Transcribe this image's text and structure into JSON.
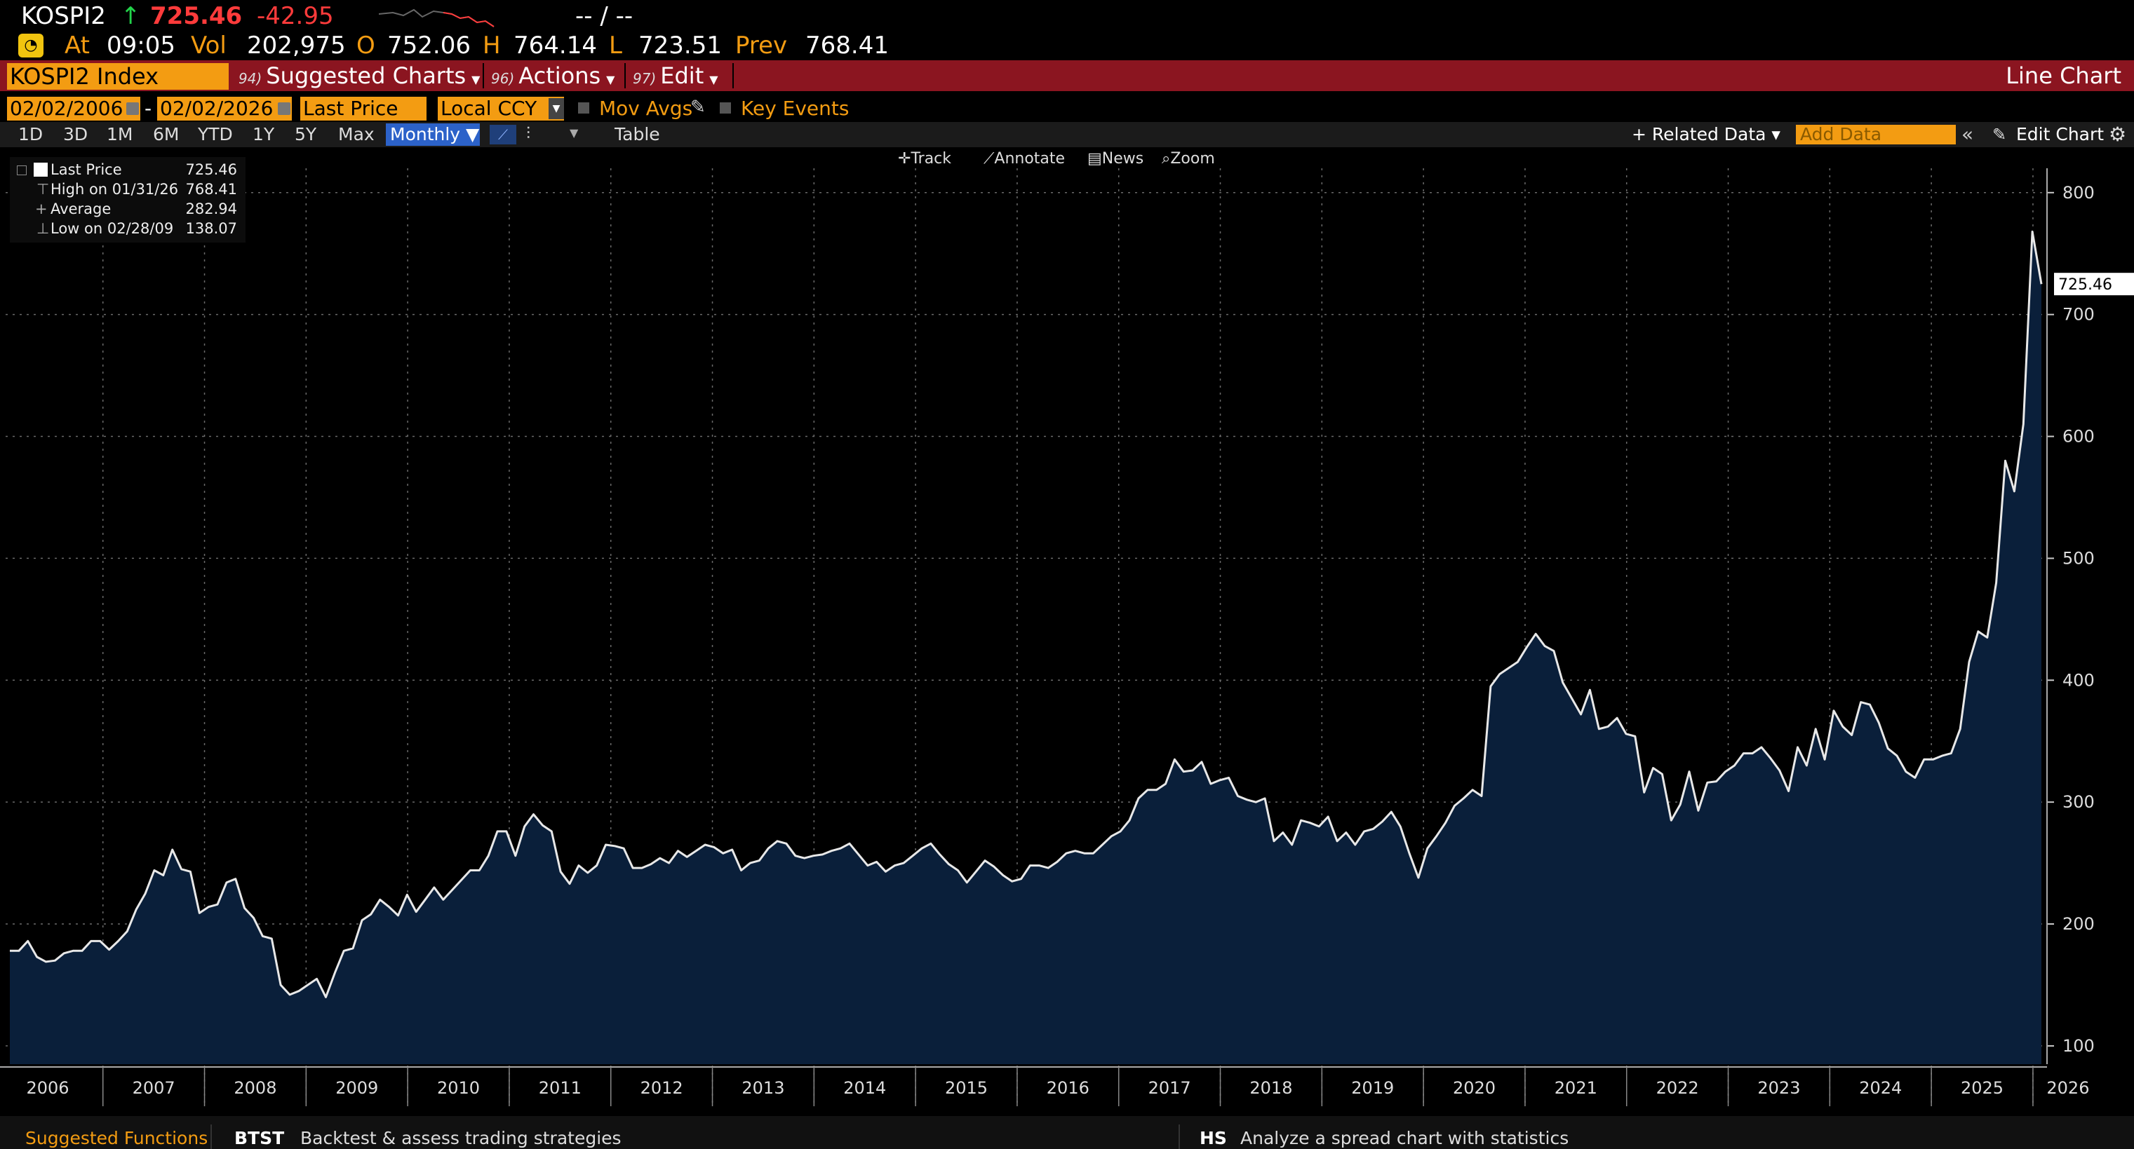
{
  "quote": {
    "symbol": "KOSPI2",
    "arrow": "↑",
    "last": "725.46",
    "change": "-42.95",
    "bidask": "-- / --",
    "at_label": "At",
    "time": "09:05",
    "vol_label": "Vol",
    "volume": "202,975",
    "open_label": "O",
    "open": "752.06",
    "high_label": "H",
    "high": "764.14",
    "low_label": "L",
    "low": "723.51",
    "prev_label": "Prev",
    "prev": "768.41"
  },
  "menubar": {
    "ticker": "KOSPI2 Index",
    "suggested": {
      "num": "94)",
      "label": "Suggested Charts"
    },
    "actions": {
      "num": "96)",
      "label": "Actions"
    },
    "edit": {
      "num": "97)",
      "label": "Edit"
    },
    "chart_type": "Line Chart"
  },
  "controls": {
    "start_date": "02/02/2006",
    "dash": "-",
    "end_date": "02/02/2026",
    "field": "Last Price",
    "currency": "Local CCY",
    "mov_avgs": "Mov Avgs",
    "key_events": "Key Events"
  },
  "ranges": {
    "items": [
      "1D",
      "3D",
      "1M",
      "6M",
      "YTD",
      "1Y",
      "5Y",
      "Max"
    ],
    "frequency": "Monthly ▼",
    "table": "Table",
    "related_data": "+ Related Data ▾",
    "add_data_placeholder": "Add Data",
    "edit_chart": "Edit Chart"
  },
  "chart_tools": {
    "track": "Track",
    "annotate": "Annotate",
    "news": "News",
    "zoom": "Zoom"
  },
  "legend": {
    "rows": [
      {
        "label": "Last Price",
        "value": "725.46"
      },
      {
        "label": "High on 01/31/26",
        "value": "768.41"
      },
      {
        "label": "Average",
        "value": "282.94"
      },
      {
        "label": "Low on 02/28/09",
        "value": "138.07"
      }
    ]
  },
  "footer": {
    "suggested_functions": "Suggested Functions",
    "f1_code": "BTST",
    "f1_desc": "Backtest & assess trading strategies",
    "f2_code": "HS",
    "f2_desc": "Analyze a spread chart with statistics"
  },
  "colors": {
    "accent": "#f39c12",
    "menubar": "#8b1520",
    "area_fill": "#0a1f3a",
    "line": "#e8e8e8",
    "down": "#ff3b3b"
  },
  "chart_data": {
    "type": "area",
    "frequency": "monthly",
    "x_start": "2006-02",
    "x_end": "2026-02",
    "ylim": [
      85,
      820
    ],
    "y_ticks": [
      100,
      200,
      300,
      400,
      500,
      600,
      700,
      800
    ],
    "x_tick_labels": [
      "2006",
      "2007",
      "2008",
      "2009",
      "2010",
      "2011",
      "2012",
      "2013",
      "2014",
      "2015",
      "2016",
      "2017",
      "2018",
      "2019",
      "2020",
      "2021",
      "2022",
      "2023",
      "2024",
      "2025",
      "2026"
    ],
    "last_value_label": "725.46",
    "grid": true,
    "series": [
      {
        "values": [
          178,
          178,
          186,
          173,
          169,
          170,
          176,
          178,
          178,
          186,
          186,
          179,
          186,
          194,
          212,
          225,
          244,
          240,
          261,
          245,
          243,
          209,
          214,
          216,
          234,
          237,
          213,
          205,
          190,
          188,
          150,
          142,
          145,
          150,
          155,
          140,
          160,
          178,
          180,
          203,
          208,
          220,
          214,
          207,
          224,
          210,
          220,
          230,
          220,
          228,
          236,
          244,
          244,
          256,
          276,
          276,
          256,
          280,
          290,
          281,
          276,
          243,
          233,
          248,
          242,
          248,
          265,
          264,
          262,
          246,
          246,
          249,
          254,
          250,
          260,
          255,
          260,
          265,
          263,
          258,
          261,
          244,
          250,
          252,
          262,
          268,
          266,
          256,
          254,
          256,
          257,
          260,
          262,
          266,
          257,
          248,
          251,
          243,
          248,
          250,
          256,
          262,
          266,
          257,
          249,
          244,
          234,
          243,
          252,
          247,
          240,
          235,
          237,
          248,
          248,
          246,
          251,
          258,
          260,
          258,
          258,
          265,
          272,
          276,
          285,
          303,
          310,
          310,
          315,
          335,
          325,
          326,
          333,
          315,
          318,
          320,
          305,
          302,
          300,
          303,
          268,
          275,
          265,
          285,
          283,
          280,
          288,
          268,
          275,
          265,
          276,
          278,
          284,
          292,
          280,
          258,
          238,
          262,
          272,
          283,
          297,
          303,
          310,
          305,
          395,
          405,
          410,
          415,
          427,
          438,
          428,
          424,
          398,
          385,
          372,
          392,
          360,
          362,
          369,
          356,
          354,
          308,
          328,
          323,
          285,
          298,
          325,
          293,
          316,
          317,
          325,
          330,
          340,
          340,
          345,
          336,
          326,
          309,
          345,
          330,
          360,
          335,
          375,
          362,
          355,
          382,
          380,
          365,
          344,
          338,
          325,
          320,
          335,
          335,
          338,
          340,
          360,
          415,
          440,
          435,
          480,
          580,
          555,
          610,
          768,
          725
        ]
      }
    ]
  }
}
